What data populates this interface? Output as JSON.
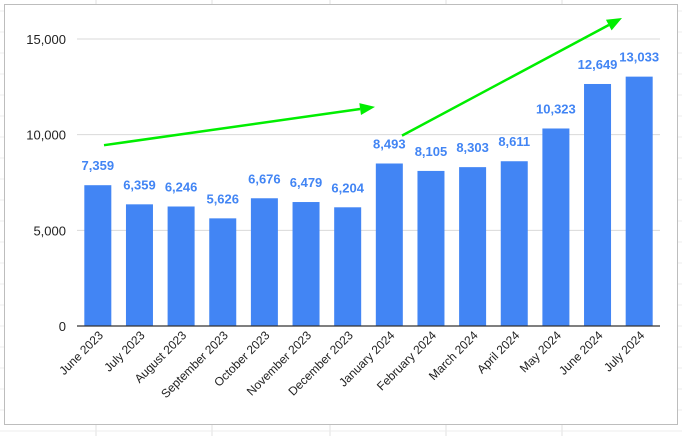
{
  "chart_data": {
    "type": "bar",
    "categories": [
      "June 2023",
      "July 2023",
      "August 2023",
      "September 2023",
      "October 2023",
      "November 2023",
      "December 2023",
      "January 2024",
      "February 2024",
      "March 2024",
      "April 2024",
      "May 2024",
      "June 2024",
      "July 2024"
    ],
    "values": [
      7359,
      6359,
      6246,
      5626,
      6676,
      6479,
      6204,
      8493,
      8105,
      8303,
      8611,
      10323,
      12649,
      13033
    ],
    "value_labels": [
      "7,359",
      "6,359",
      "6,246",
      "5,626",
      "6,676",
      "6,479",
      "6,204",
      "8,493",
      "8,105",
      "8,303",
      "8,611",
      "10,323",
      "12,649",
      "13,033"
    ],
    "title": "",
    "xlabel": "",
    "ylabel": "",
    "ylim": [
      0,
      15000
    ],
    "yticks": [
      0,
      5000,
      10000,
      15000
    ],
    "ytick_labels": [
      "0",
      "5,000",
      "10,000",
      "15,000"
    ],
    "grid": true,
    "legend": "none",
    "bar_color": "#4285f4",
    "label_color": "#4285f4",
    "annotations": [
      {
        "type": "arrow",
        "color": "#00ee00",
        "description": "upward trend arrow over June 2023 – December 2023"
      },
      {
        "type": "arrow",
        "color": "#00ee00",
        "description": "upward trend arrow over January 2024 – July 2024"
      }
    ]
  }
}
